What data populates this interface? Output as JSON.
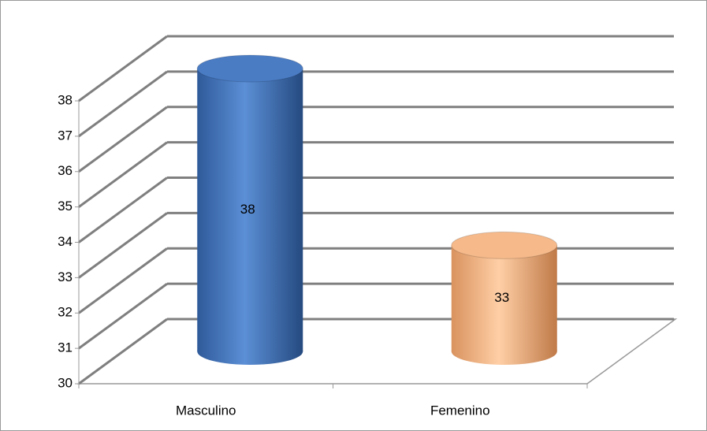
{
  "chart_data": {
    "type": "bar3d_cylinder",
    "categories": [
      "Masculino",
      "Femenino"
    ],
    "values": [
      38,
      33
    ],
    "colors": [
      "#4a7cc4",
      "#f5b98a"
    ],
    "ylim": [
      30,
      38
    ],
    "yticks": [
      30,
      31,
      32,
      33,
      34,
      35,
      36,
      37,
      38
    ],
    "grid": true
  }
}
